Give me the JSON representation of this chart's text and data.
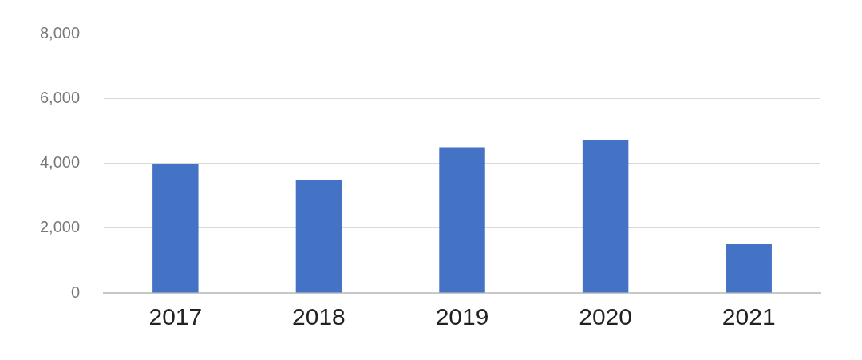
{
  "chart_data": {
    "type": "bar",
    "categories": [
      "2017",
      "2018",
      "2019",
      "2020",
      "2021"
    ],
    "values": [
      3980,
      3490,
      4490,
      4710,
      1500
    ],
    "color": "#4472c4",
    "ylim": [
      0,
      8000
    ],
    "yticks": [
      {
        "value": 0,
        "label": "0"
      },
      {
        "value": 2000,
        "label": "2,000"
      },
      {
        "value": 4000,
        "label": "4,000"
      },
      {
        "value": 6000,
        "label": "6,000"
      },
      {
        "value": 8000,
        "label": "8,000"
      }
    ],
    "grid": "y"
  }
}
